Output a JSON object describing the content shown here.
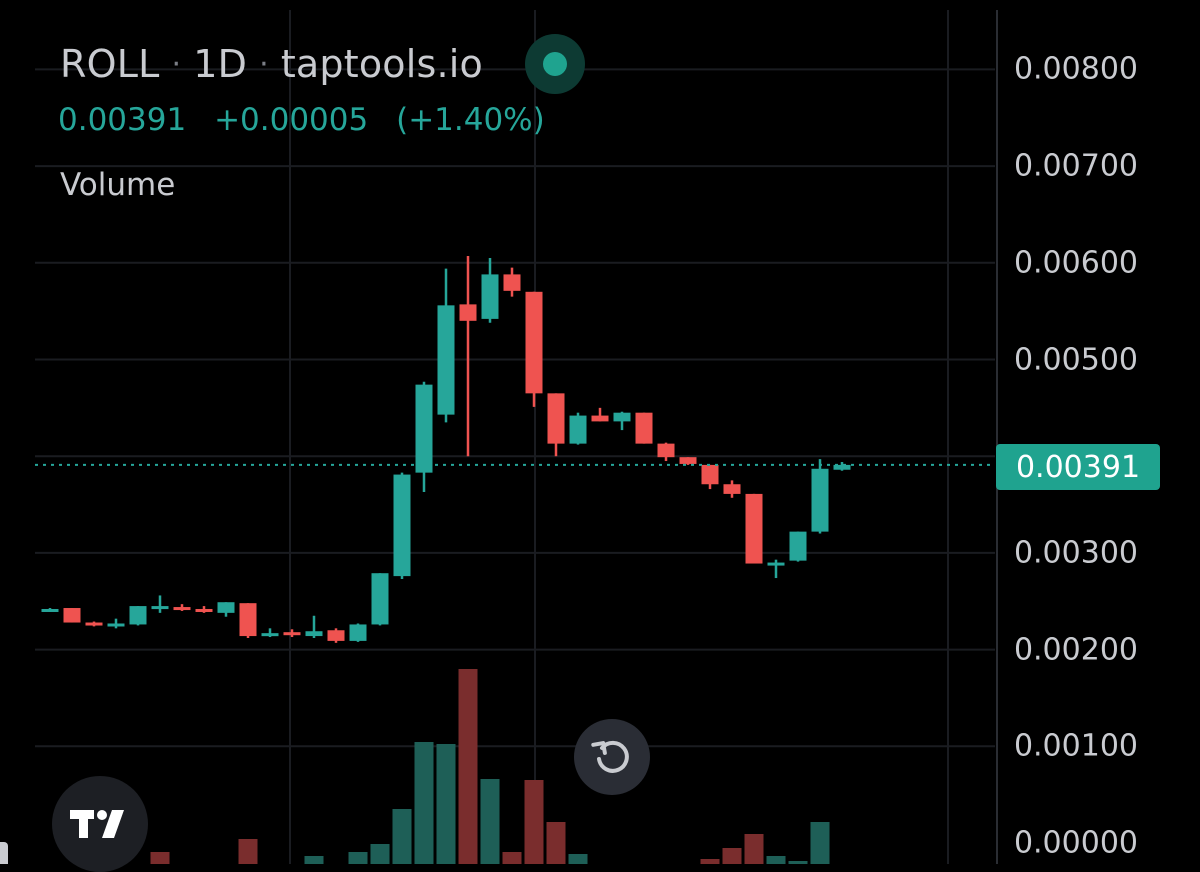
{
  "legend": {
    "symbol": "ROLL",
    "separator": "·",
    "interval": "1D",
    "source": "taptools.io",
    "status_color": "#1fa38f",
    "last_price": "0.00391",
    "change": "+0.00005",
    "change_pct": "(+1.40%)",
    "indicator": "Volume"
  },
  "price_axis": {
    "labels": [
      "0.00800",
      "0.00700",
      "0.00600",
      "0.00500",
      "0.00300",
      "0.00200",
      "0.00100",
      "0.00000"
    ],
    "last_price_tag": "0.00391",
    "tag_color": "#1fa38f"
  },
  "controls": {
    "reset_icon": "reset-rotate-icon",
    "logo_icon": "tradingview-logo-icon"
  },
  "chart_data": {
    "type": "candlestick",
    "up_color": "#26a69a",
    "down_color": "#ef5350",
    "ylim": [
      0.0,
      0.0083
    ],
    "last_price": 0.00391,
    "candles": [
      {
        "o": 0.00241,
        "h": 0.00243,
        "l": 0.00239,
        "c": 0.00242
      },
      {
        "o": 0.00243,
        "h": 0.00243,
        "l": 0.00228,
        "c": 0.00228
      },
      {
        "o": 0.00228,
        "h": 0.00229,
        "l": 0.00224,
        "c": 0.00225
      },
      {
        "o": 0.00225,
        "h": 0.00232,
        "l": 0.00222,
        "c": 0.00227
      },
      {
        "o": 0.00226,
        "h": 0.00245,
        "l": 0.00225,
        "c": 0.00245
      },
      {
        "o": 0.00245,
        "h": 0.00256,
        "l": 0.00238,
        "c": 0.00245
      },
      {
        "o": 0.00244,
        "h": 0.00247,
        "l": 0.0024,
        "c": 0.00241
      },
      {
        "o": 0.00242,
        "h": 0.00245,
        "l": 0.00238,
        "c": 0.0024
      },
      {
        "o": 0.00238,
        "h": 0.00249,
        "l": 0.00234,
        "c": 0.00249
      },
      {
        "o": 0.00248,
        "h": 0.00248,
        "l": 0.00212,
        "c": 0.00214
      },
      {
        "o": 0.00215,
        "h": 0.00222,
        "l": 0.00213,
        "c": 0.00217
      },
      {
        "o": 0.00218,
        "h": 0.00221,
        "l": 0.00213,
        "c": 0.00216
      },
      {
        "o": 0.00214,
        "h": 0.00235,
        "l": 0.00212,
        "c": 0.00219
      },
      {
        "o": 0.0022,
        "h": 0.00222,
        "l": 0.00207,
        "c": 0.00209
      },
      {
        "o": 0.00209,
        "h": 0.00227,
        "l": 0.00208,
        "c": 0.00226
      },
      {
        "o": 0.00226,
        "h": 0.00279,
        "l": 0.00225,
        "c": 0.00279
      },
      {
        "o": 0.00276,
        "h": 0.00383,
        "l": 0.00273,
        "c": 0.00381
      },
      {
        "o": 0.00383,
        "h": 0.00477,
        "l": 0.00363,
        "c": 0.00474
      },
      {
        "o": 0.00443,
        "h": 0.00594,
        "l": 0.00435,
        "c": 0.00556
      },
      {
        "o": 0.00557,
        "h": 0.00607,
        "l": 0.004,
        "c": 0.0054
      },
      {
        "o": 0.00542,
        "h": 0.00605,
        "l": 0.00538,
        "c": 0.00588
      },
      {
        "o": 0.00588,
        "h": 0.00595,
        "l": 0.00565,
        "c": 0.00571
      },
      {
        "o": 0.0057,
        "h": 0.0057,
        "l": 0.00451,
        "c": 0.00465
      },
      {
        "o": 0.00465,
        "h": 0.00465,
        "l": 0.004,
        "c": 0.00413
      },
      {
        "o": 0.00413,
        "h": 0.00445,
        "l": 0.00412,
        "c": 0.00442
      },
      {
        "o": 0.00442,
        "h": 0.0045,
        "l": 0.00436,
        "c": 0.00436
      },
      {
        "o": 0.00436,
        "h": 0.00446,
        "l": 0.00427,
        "c": 0.00445
      },
      {
        "o": 0.00445,
        "h": 0.00445,
        "l": 0.00413,
        "c": 0.00413
      },
      {
        "o": 0.00413,
        "h": 0.00414,
        "l": 0.00395,
        "c": 0.00399
      },
      {
        "o": 0.00399,
        "h": 0.00399,
        "l": 0.00391,
        "c": 0.00392
      },
      {
        "o": 0.00391,
        "h": 0.00391,
        "l": 0.00366,
        "c": 0.00371
      },
      {
        "o": 0.00371,
        "h": 0.00375,
        "l": 0.00357,
        "c": 0.00361
      },
      {
        "o": 0.00361,
        "h": 0.00361,
        "l": 0.00289,
        "c": 0.00289
      },
      {
        "o": 0.00287,
        "h": 0.00293,
        "l": 0.00274,
        "c": 0.0029
      },
      {
        "o": 0.00292,
        "h": 0.00322,
        "l": 0.00291,
        "c": 0.00322
      },
      {
        "o": 0.00322,
        "h": 0.00397,
        "l": 0.0032,
        "c": 0.00387
      },
      {
        "o": 0.00386,
        "h": 0.00394,
        "l": 0.00385,
        "c": 0.00391
      }
    ],
    "volume": [
      {
        "v": 0,
        "dir": "up"
      },
      {
        "v": 0,
        "dir": "down"
      },
      {
        "v": 0,
        "dir": "down"
      },
      {
        "v": 0,
        "dir": "up"
      },
      {
        "v": 0,
        "dir": "up"
      },
      {
        "v": 12,
        "dir": "down"
      },
      {
        "v": 0,
        "dir": "down"
      },
      {
        "v": 0,
        "dir": "down"
      },
      {
        "v": 0,
        "dir": "up"
      },
      {
        "v": 25,
        "dir": "down"
      },
      {
        "v": 0,
        "dir": "up"
      },
      {
        "v": 0,
        "dir": "down"
      },
      {
        "v": 8,
        "dir": "up"
      },
      {
        "v": 0,
        "dir": "down"
      },
      {
        "v": 12,
        "dir": "up"
      },
      {
        "v": 20,
        "dir": "up"
      },
      {
        "v": 55,
        "dir": "up"
      },
      {
        "v": 122,
        "dir": "up"
      },
      {
        "v": 120,
        "dir": "up"
      },
      {
        "v": 195,
        "dir": "down"
      },
      {
        "v": 85,
        "dir": "up"
      },
      {
        "v": 12,
        "dir": "down"
      },
      {
        "v": 84,
        "dir": "down"
      },
      {
        "v": 42,
        "dir": "down"
      },
      {
        "v": 10,
        "dir": "up"
      },
      {
        "v": 0,
        "dir": "down"
      },
      {
        "v": 0,
        "dir": "up"
      },
      {
        "v": 0,
        "dir": "down"
      },
      {
        "v": 0,
        "dir": "down"
      },
      {
        "v": 0,
        "dir": "down"
      },
      {
        "v": 5,
        "dir": "down"
      },
      {
        "v": 16,
        "dir": "down"
      },
      {
        "v": 30,
        "dir": "down"
      },
      {
        "v": 8,
        "dir": "up"
      },
      {
        "v": 3,
        "dir": "up"
      },
      {
        "v": 42,
        "dir": "up"
      },
      {
        "v": 0,
        "dir": "up"
      }
    ]
  }
}
